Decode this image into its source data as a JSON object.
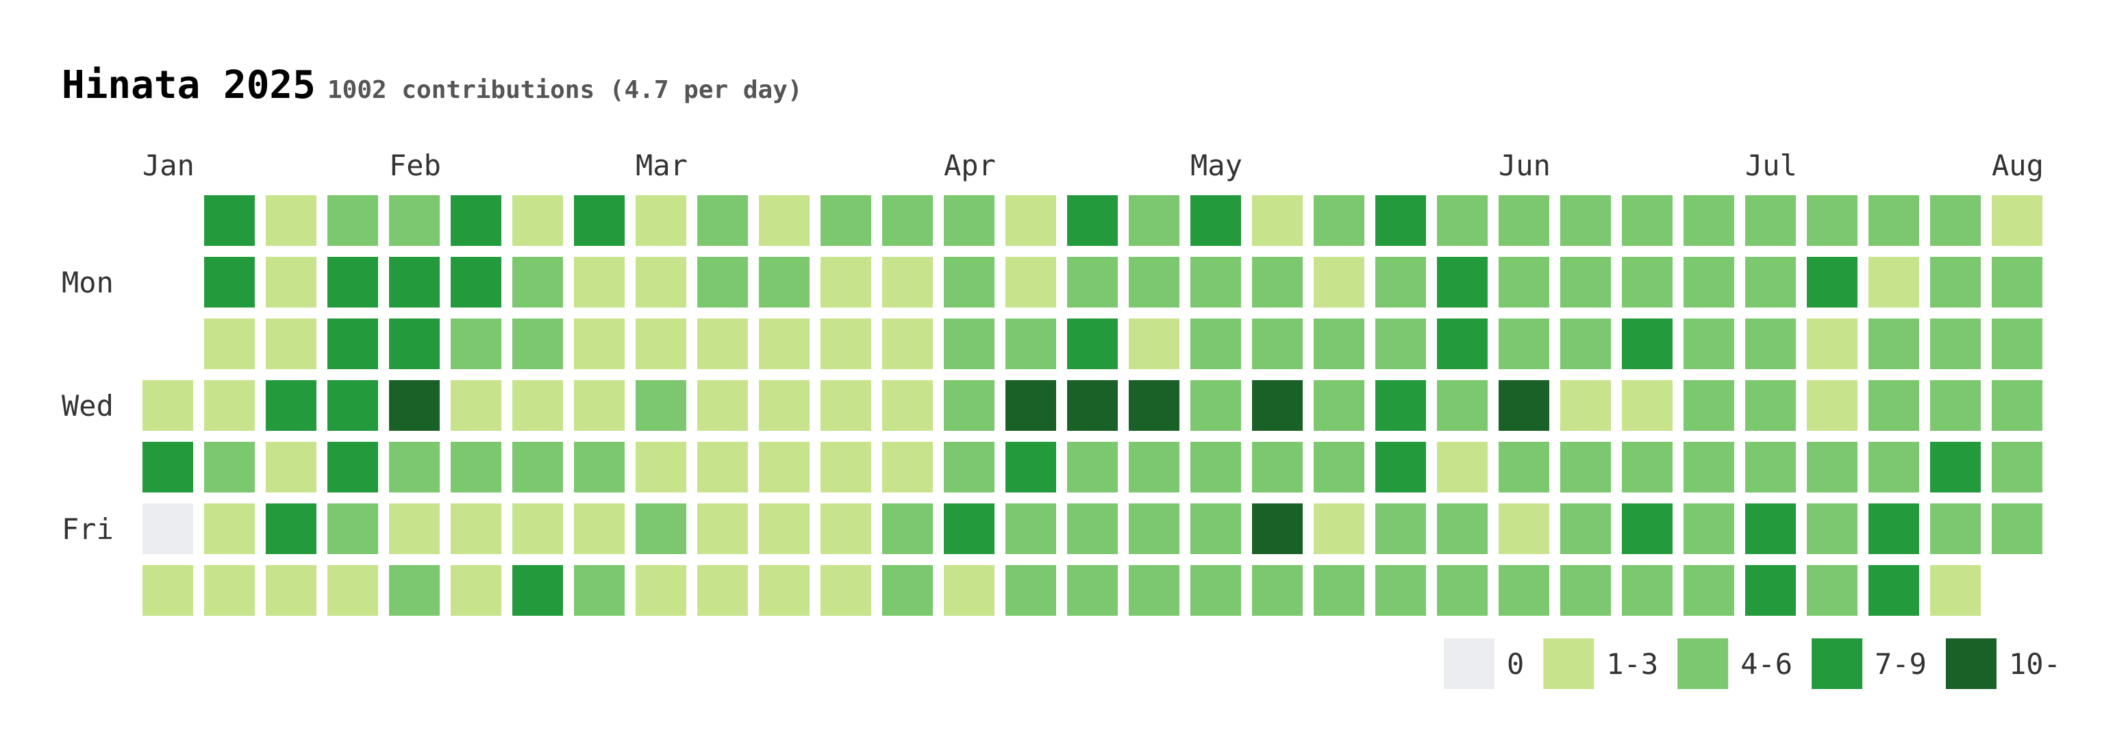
{
  "header": {
    "title": "Hinata 2025",
    "subtitle": "1002 contributions (4.7 per day)"
  },
  "colors": {
    "level_0": "#ebedf0",
    "level_1": "#c7e48c",
    "level_2": "#7cc86e",
    "level_3": "#239a3b",
    "level_4": "#196127"
  },
  "chart_data": {
    "type": "heatmap",
    "title": "Hinata 2025",
    "subtitle": "1002 contributions (4.7 per day)",
    "month_labels": [
      {
        "label": "Jan",
        "week": 0
      },
      {
        "label": "Feb",
        "week": 4
      },
      {
        "label": "Mar",
        "week": 8
      },
      {
        "label": "Apr",
        "week": 13
      },
      {
        "label": "May",
        "week": 17
      },
      {
        "label": "Jun",
        "week": 22
      },
      {
        "label": "Jul",
        "week": 26
      },
      {
        "label": "Aug",
        "week": 30
      }
    ],
    "day_labels": [
      {
        "label": "Mon",
        "row": 1
      },
      {
        "label": "Wed",
        "row": 3
      },
      {
        "label": "Fri",
        "row": 5
      }
    ],
    "legend": [
      {
        "label": "0",
        "level": 0
      },
      {
        "label": "1-3",
        "level": 1
      },
      {
        "label": "4-6",
        "level": 2
      },
      {
        "label": "7-9",
        "level": 3
      },
      {
        "label": "10-",
        "level": 4
      }
    ],
    "levels_by_row": [
      [
        null,
        3,
        1,
        2,
        2,
        3,
        1,
        3,
        1,
        2,
        1,
        2,
        2,
        2,
        1,
        3,
        2,
        3,
        1,
        2,
        3,
        2,
        2,
        2,
        2,
        2,
        2,
        2,
        2,
        2,
        1
      ],
      [
        null,
        3,
        1,
        3,
        3,
        3,
        2,
        1,
        1,
        2,
        2,
        1,
        1,
        2,
        1,
        2,
        2,
        2,
        2,
        1,
        2,
        3,
        2,
        2,
        2,
        2,
        2,
        3,
        1,
        2,
        2
      ],
      [
        null,
        1,
        1,
        3,
        3,
        2,
        2,
        1,
        1,
        1,
        1,
        1,
        1,
        2,
        2,
        3,
        1,
        2,
        2,
        2,
        2,
        3,
        2,
        2,
        3,
        2,
        2,
        1,
        2,
        2,
        2
      ],
      [
        1,
        1,
        3,
        3,
        4,
        1,
        1,
        1,
        2,
        1,
        1,
        1,
        1,
        2,
        4,
        4,
        4,
        2,
        4,
        2,
        3,
        2,
        4,
        1,
        1,
        2,
        2,
        1,
        2,
        2,
        2
      ],
      [
        3,
        2,
        1,
        3,
        2,
        2,
        2,
        2,
        1,
        1,
        1,
        1,
        1,
        2,
        3,
        2,
        2,
        2,
        2,
        2,
        3,
        1,
        2,
        2,
        2,
        2,
        2,
        2,
        2,
        3,
        2
      ],
      [
        0,
        1,
        3,
        2,
        1,
        1,
        1,
        1,
        2,
        1,
        1,
        1,
        2,
        3,
        2,
        2,
        2,
        2,
        4,
        1,
        2,
        2,
        1,
        2,
        3,
        2,
        3,
        2,
        3,
        2,
        2
      ],
      [
        1,
        1,
        1,
        1,
        2,
        1,
        3,
        2,
        1,
        1,
        1,
        1,
        2,
        1,
        2,
        2,
        2,
        2,
        2,
        2,
        2,
        2,
        2,
        2,
        2,
        2,
        3,
        2,
        3,
        1,
        null
      ]
    ]
  }
}
